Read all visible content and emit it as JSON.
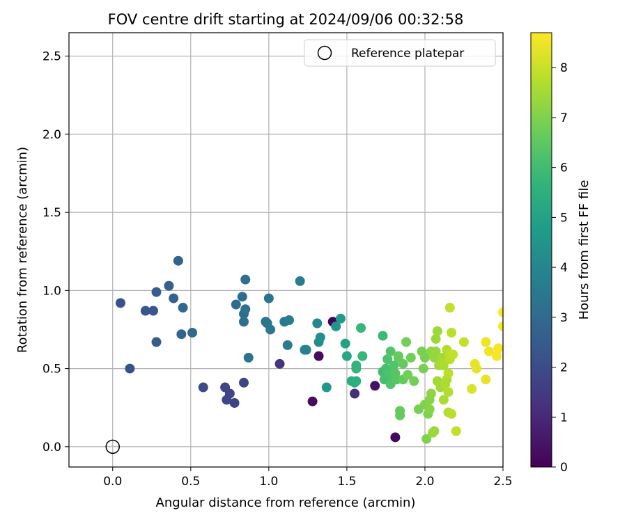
{
  "chart_data": {
    "type": "scatter",
    "title": "FOV centre drift starting at 2024/09/06 00:32:58",
    "xlabel": "Angular distance from reference (arcmin)",
    "ylabel": "Rotation from reference (arcmin)",
    "xlim": [
      -0.28,
      2.5
    ],
    "ylim": [
      -0.13,
      2.65
    ],
    "xticks": [
      0.0,
      0.5,
      1.0,
      1.5,
      2.0,
      2.5
    ],
    "xtick_labels": [
      "0.0",
      "0.5",
      "1.0",
      "1.5",
      "2.0",
      "2.5"
    ],
    "yticks": [
      0.0,
      0.5,
      1.0,
      1.5,
      2.0,
      2.5
    ],
    "ytick_labels": [
      "0.0",
      "0.5",
      "1.0",
      "1.5",
      "2.0",
      "2.5"
    ],
    "grid": true,
    "legend": {
      "placement": "top-right",
      "label": "Reference platepar"
    },
    "reference_point": {
      "x": 0.0,
      "y": 0.0
    },
    "colorbar": {
      "label": "Hours from first FF file",
      "colormap": "viridis",
      "range": [
        0,
        8.7
      ],
      "ticks": [
        0,
        1,
        2,
        3,
        4,
        5,
        6,
        7,
        8
      ],
      "tick_labels": [
        "0",
        "1",
        "2",
        "3",
        "4",
        "5",
        "6",
        "7",
        "8"
      ]
    },
    "points": [
      [
        1.41,
        0.8,
        0.1
      ],
      [
        1.28,
        0.29,
        0.3
      ],
      [
        1.81,
        0.06,
        0.2
      ],
      [
        1.32,
        0.58,
        0.3
      ],
      [
        1.68,
        0.39,
        0.4
      ],
      [
        1.55,
        0.34,
        1.1
      ],
      [
        1.07,
        0.53,
        1.3
      ],
      [
        0.84,
        0.41,
        1.8
      ],
      [
        0.78,
        0.28,
        1.7
      ],
      [
        0.73,
        0.3,
        1.8
      ],
      [
        0.75,
        0.34,
        1.8
      ],
      [
        0.72,
        0.38,
        1.8
      ],
      [
        0.58,
        0.38,
        2.0
      ],
      [
        0.05,
        0.92,
        2.2
      ],
      [
        0.11,
        0.5,
        2.2
      ],
      [
        0.21,
        0.87,
        2.3
      ],
      [
        0.26,
        0.87,
        2.3
      ],
      [
        0.28,
        0.67,
        2.5
      ],
      [
        0.28,
        0.99,
        2.6
      ],
      [
        0.36,
        1.03,
        2.7
      ],
      [
        0.39,
        0.95,
        2.7
      ],
      [
        0.42,
        1.19,
        2.8
      ],
      [
        0.44,
        0.72,
        2.8
      ],
      [
        0.45,
        0.89,
        2.9
      ],
      [
        0.51,
        0.73,
        3.0
      ],
      [
        0.79,
        0.91,
        3.1
      ],
      [
        0.83,
        0.96,
        3.1
      ],
      [
        0.84,
        0.85,
        3.1
      ],
      [
        0.84,
        0.8,
        3.2
      ],
      [
        0.85,
        1.07,
        3.2
      ],
      [
        0.85,
        0.88,
        3.2
      ],
      [
        0.87,
        0.57,
        3.3
      ],
      [
        0.98,
        0.8,
        3.3
      ],
      [
        0.99,
        0.79,
        3.4
      ],
      [
        1.0,
        0.95,
        3.4
      ],
      [
        1.01,
        0.75,
        3.5
      ],
      [
        1.1,
        0.8,
        3.5
      ],
      [
        1.12,
        0.65,
        3.6
      ],
      [
        1.13,
        0.81,
        3.6
      ],
      [
        1.2,
        1.06,
        3.7
      ],
      [
        1.23,
        0.62,
        3.8
      ],
      [
        1.24,
        0.62,
        3.9
      ],
      [
        1.31,
        0.79,
        4.1
      ],
      [
        1.32,
        0.67,
        4.2
      ],
      [
        1.33,
        0.7,
        4.3
      ],
      [
        1.37,
        0.38,
        4.6
      ],
      [
        1.43,
        0.77,
        4.5
      ],
      [
        1.46,
        0.82,
        4.7
      ],
      [
        1.49,
        0.66,
        5.0
      ],
      [
        1.5,
        0.58,
        5.2
      ],
      [
        1.53,
        0.42,
        5.4
      ],
      [
        1.55,
        0.41,
        5.4
      ],
      [
        1.56,
        0.42,
        5.5
      ],
      [
        1.56,
        0.52,
        5.6
      ],
      [
        1.56,
        0.5,
        5.7
      ],
      [
        1.59,
        0.76,
        5.8
      ],
      [
        1.6,
        0.58,
        5.8
      ],
      [
        1.73,
        0.71,
        5.9
      ],
      [
        1.73,
        0.48,
        6.0
      ],
      [
        1.74,
        0.43,
        6.1
      ],
      [
        1.75,
        0.45,
        6.1
      ],
      [
        1.75,
        0.5,
        6.1
      ],
      [
        1.76,
        0.56,
        6.2
      ],
      [
        1.77,
        0.47,
        6.2
      ],
      [
        1.78,
        0.61,
        6.3
      ],
      [
        1.78,
        0.4,
        6.3
      ],
      [
        1.79,
        0.45,
        6.2
      ],
      [
        1.8,
        0.52,
        6.3
      ],
      [
        1.81,
        0.47,
        6.4
      ],
      [
        1.82,
        0.43,
        6.4
      ],
      [
        1.83,
        0.57,
        6.5
      ],
      [
        1.83,
        0.58,
        6.6
      ],
      [
        1.84,
        0.23,
        6.6
      ],
      [
        1.84,
        0.2,
        6.6
      ],
      [
        1.86,
        0.43,
        6.6
      ],
      [
        1.86,
        0.53,
        6.6
      ],
      [
        1.88,
        0.67,
        6.8
      ],
      [
        1.89,
        0.46,
        6.8
      ],
      [
        1.91,
        0.57,
        6.8
      ],
      [
        1.93,
        0.42,
        6.8
      ],
      [
        1.96,
        0.24,
        6.9
      ],
      [
        1.98,
        0.61,
        6.9
      ],
      [
        1.99,
        0.5,
        6.9
      ],
      [
        2.0,
        0.57,
        6.9
      ],
      [
        2.0,
        0.27,
        7.0
      ],
      [
        2.01,
        0.05,
        7.0
      ],
      [
        2.02,
        0.21,
        7.0
      ],
      [
        2.03,
        0.24,
        7.1
      ],
      [
        2.03,
        0.3,
        7.1
      ],
      [
        2.04,
        0.61,
        7.2
      ],
      [
        2.04,
        0.34,
        7.2
      ],
      [
        2.05,
        0.09,
        7.3
      ],
      [
        2.06,
        0.57,
        7.3
      ],
      [
        2.06,
        0.1,
        7.4
      ],
      [
        2.07,
        0.61,
        7.3
      ],
      [
        2.07,
        0.69,
        7.4
      ],
      [
        2.08,
        0.74,
        7.4
      ],
      [
        2.08,
        0.42,
        7.5
      ],
      [
        2.09,
        0.52,
        7.5
      ],
      [
        2.1,
        0.38,
        7.5
      ],
      [
        2.11,
        0.57,
        7.5
      ],
      [
        2.11,
        0.53,
        7.6
      ],
      [
        2.12,
        0.52,
        7.6
      ],
      [
        2.12,
        0.3,
        7.6
      ],
      [
        2.13,
        0.4,
        7.6
      ],
      [
        2.14,
        0.43,
        7.6
      ],
      [
        2.14,
        0.62,
        7.7
      ],
      [
        2.15,
        0.35,
        7.7
      ],
      [
        2.15,
        0.22,
        7.7
      ],
      [
        2.15,
        0.47,
        7.8
      ],
      [
        2.16,
        0.59,
        7.8
      ],
      [
        2.16,
        0.56,
        7.8
      ],
      [
        2.17,
        0.21,
        7.8
      ],
      [
        2.17,
        0.73,
        7.8
      ],
      [
        2.18,
        0.59,
        7.9
      ],
      [
        2.2,
        0.1,
        7.9
      ],
      [
        2.16,
        0.89,
        7.9
      ],
      [
        2.25,
        0.67,
        7.9
      ],
      [
        2.3,
        0.37,
        8.2
      ],
      [
        2.32,
        0.53,
        8.4
      ],
      [
        2.33,
        0.5,
        8.4
      ],
      [
        2.39,
        0.43,
        8.4
      ],
      [
        2.39,
        0.67,
        8.5
      ],
      [
        2.41,
        0.61,
        8.5
      ],
      [
        2.46,
        0.58,
        8.6
      ],
      [
        2.47,
        0.63,
        8.6
      ],
      [
        2.5,
        0.77,
        8.7
      ],
      [
        2.5,
        0.86,
        8.7
      ]
    ]
  }
}
